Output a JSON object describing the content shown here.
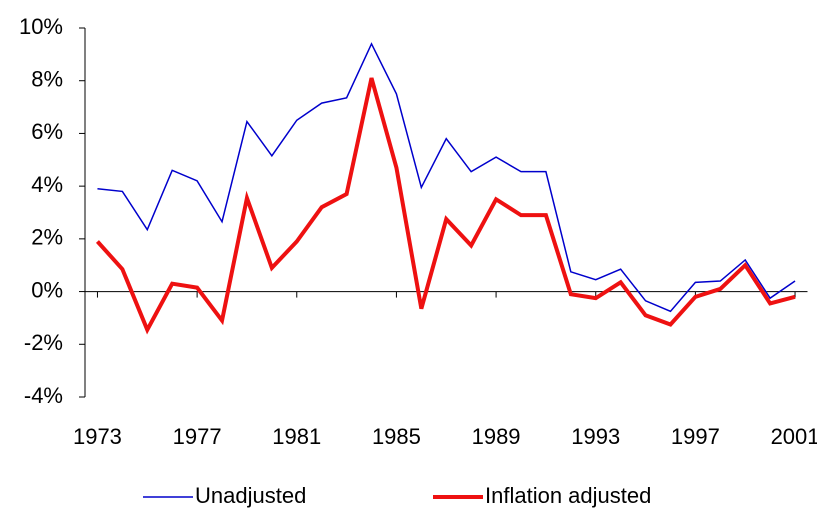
{
  "chart_data": {
    "type": "line",
    "x": [
      1973,
      1974,
      1975,
      1976,
      1977,
      1978,
      1979,
      1980,
      1981,
      1982,
      1983,
      1984,
      1985,
      1986,
      1987,
      1988,
      1989,
      1990,
      1991,
      1992,
      1993,
      1994,
      1995,
      1996,
      1997,
      1998,
      1999,
      2000,
      2001
    ],
    "series": [
      {
        "name": "Unadjusted",
        "color": "#0000cc",
        "values": [
          3.9,
          3.8,
          2.35,
          4.6,
          4.2,
          2.65,
          6.45,
          5.15,
          6.5,
          7.15,
          7.35,
          9.4,
          7.5,
          3.95,
          5.8,
          4.55,
          5.1,
          4.55,
          4.55,
          0.75,
          0.45,
          0.85,
          -0.35,
          -0.75,
          0.35,
          0.4,
          1.2,
          -0.25,
          0.4
        ]
      },
      {
        "name": "Inflation adjusted",
        "color": "#ee1111",
        "values": [
          1.9,
          0.85,
          -1.45,
          0.3,
          0.15,
          -1.1,
          3.55,
          0.9,
          1.9,
          3.2,
          3.7,
          8.1,
          4.7,
          -0.65,
          2.75,
          1.75,
          3.5,
          2.9,
          2.9,
          -0.1,
          -0.25,
          0.35,
          -0.9,
          -1.25,
          -0.2,
          0.1,
          1.0,
          -0.45,
          -0.2
        ]
      }
    ],
    "xlim": [
      1972.5,
      2001.5
    ],
    "xticks": [
      1973,
      1977,
      1981,
      1985,
      1989,
      1993,
      1997,
      2001
    ],
    "ylim": [
      -4,
      10
    ],
    "yticks": [
      {
        "value": -4,
        "label": "-4%"
      },
      {
        "value": -2,
        "label": "-2%"
      },
      {
        "value": 0,
        "label": "0%"
      },
      {
        "value": 2,
        "label": "2%"
      },
      {
        "value": 4,
        "label": "4%"
      },
      {
        "value": 6,
        "label": "6%"
      },
      {
        "value": 8,
        "label": "8%"
      },
      {
        "value": 10,
        "label": "10%"
      }
    ],
    "legend": "bottom"
  }
}
